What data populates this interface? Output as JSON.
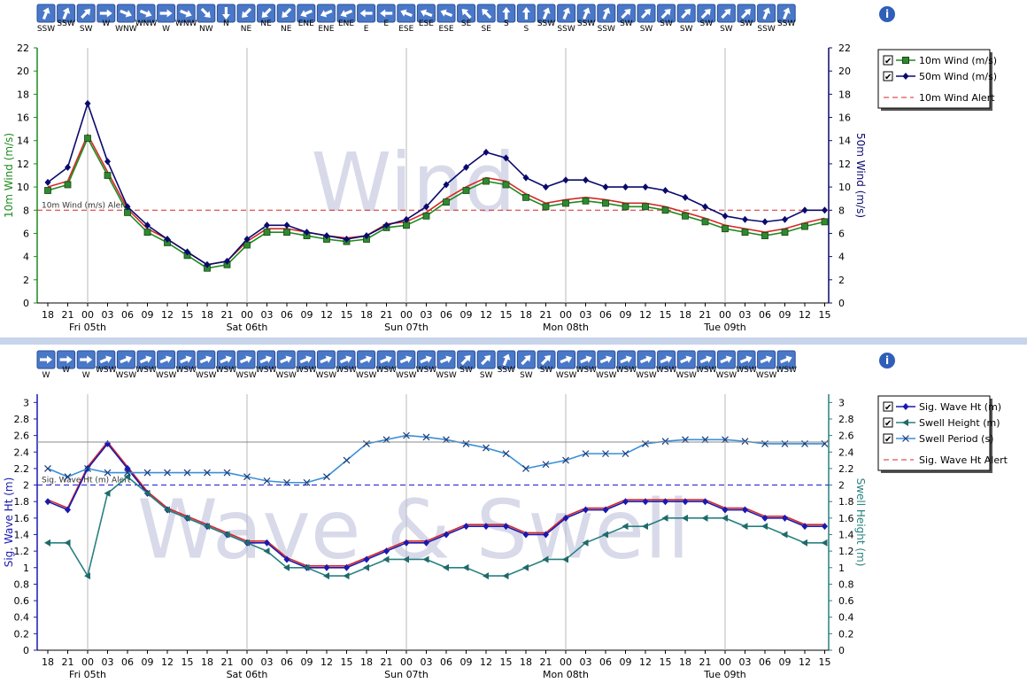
{
  "colors": {
    "green": "#1e8a1e",
    "navy": "#0a0a6e",
    "red": "#d62828",
    "alert_green": "#2e8b2e",
    "blue_line": "#1a1ab0",
    "teal": "#2a8080",
    "light_blue": "#3a8fd8",
    "alert_blue": "#1a1ad0",
    "watermark": "#b8bcd8",
    "divider": "#c8d4ea",
    "arrow_btn": "#4a78c8"
  },
  "x_axis": {
    "hour_labels": [
      "18",
      "21",
      "00",
      "03",
      "06",
      "09",
      "12",
      "15",
      "18",
      "21",
      "00",
      "03",
      "06",
      "09",
      "12",
      "15",
      "18",
      "21",
      "00",
      "03",
      "06",
      "09",
      "12",
      "15",
      "18",
      "21",
      "00",
      "03",
      "06",
      "09",
      "12",
      "15",
      "18",
      "21",
      "00",
      "03",
      "06",
      "09",
      "12",
      "15"
    ],
    "day_labels": [
      {
        "label": "Fri 05th",
        "index": 2
      },
      {
        "label": "Sat 06th",
        "index": 10
      },
      {
        "label": "Sun 07th",
        "index": 18
      },
      {
        "label": "Mon 08th",
        "index": 26
      },
      {
        "label": "Tue 09th",
        "index": 34
      }
    ]
  },
  "info_icon": "i",
  "wind_strip": {
    "directions": [
      "SSW",
      "SSW",
      "SW",
      "W",
      "WNW",
      "WNW",
      "W",
      "WNW",
      "NW",
      "N",
      "NE",
      "NE",
      "NE",
      "ENE",
      "ENE",
      "ENE",
      "E",
      "E",
      "ESE",
      "ESE",
      "ESE",
      "SE",
      "SE",
      "S",
      "S",
      "SSW",
      "SSW",
      "SSW",
      "SSW",
      "SW",
      "SW",
      "SW",
      "SW",
      "SW",
      "SW",
      "SW",
      "SSW",
      "SSW"
    ],
    "headings": [
      202,
      202,
      225,
      270,
      292,
      292,
      270,
      292,
      315,
      0,
      45,
      45,
      45,
      68,
      68,
      68,
      90,
      90,
      112,
      112,
      112,
      135,
      135,
      180,
      180,
      202,
      202,
      202,
      202,
      225,
      225,
      225,
      225,
      225,
      225,
      225,
      202,
      202
    ]
  },
  "wave_strip": {
    "directions": [
      "W",
      "W",
      "W",
      "WSW",
      "WSW",
      "WSW",
      "WSW",
      "WSW",
      "WSW",
      "WSW",
      "WSW",
      "WSW",
      "WSW",
      "WSW",
      "WSW",
      "WSW",
      "WSW",
      "WSW",
      "WSW",
      "WSW",
      "WSW",
      "SW",
      "SW",
      "SSW",
      "SW",
      "SW",
      "WSW",
      "WSW",
      "WSW",
      "WSW",
      "WSW",
      "WSW",
      "WSW",
      "WSW",
      "WSW",
      "WSW",
      "WSW",
      "WSW"
    ],
    "headings": [
      270,
      270,
      270,
      248,
      248,
      248,
      248,
      248,
      248,
      248,
      248,
      248,
      248,
      248,
      248,
      248,
      248,
      248,
      248,
      248,
      248,
      225,
      225,
      202,
      225,
      225,
      248,
      248,
      248,
      248,
      248,
      248,
      248,
      248,
      248,
      248,
      248,
      248
    ]
  },
  "chart_data": [
    {
      "type": "line",
      "title": "Wind",
      "ylabel": "10m Wind (m/s)",
      "ylabel_right": "50m Wind (m/s)",
      "ylim": [
        0,
        22
      ],
      "ylim_right": [
        0,
        22
      ],
      "yticks": [
        0,
        2,
        4,
        6,
        8,
        10,
        12,
        14,
        16,
        18,
        20,
        22
      ],
      "grid": "vertical day lines",
      "legend_position": "right",
      "legend": [
        {
          "label": "10m Wind (m/s)",
          "checked": "✔",
          "marker": "square"
        },
        {
          "label": "50m Wind (m/s)",
          "checked": "✔",
          "marker": "diamond"
        },
        {
          "label": "10m Wind Alert",
          "marker": "dash"
        }
      ],
      "alert": {
        "label": "10m Wind (m/s) Alert",
        "value": 8
      },
      "series": [
        {
          "name": "10m Wind (m/s)",
          "x": [
            0,
            1,
            2,
            3,
            4,
            5,
            6,
            7,
            8,
            9,
            10,
            11,
            12,
            13,
            14,
            15,
            16,
            17,
            18,
            19,
            20,
            21,
            22,
            23,
            24,
            25,
            26,
            27,
            28,
            29,
            30,
            31,
            32,
            33,
            34,
            35,
            36,
            37,
            38,
            39
          ],
          "values": [
            9.7,
            10.2,
            14.2,
            11.0,
            7.8,
            6.1,
            5.2,
            4.1,
            3.0,
            3.3,
            5.0,
            6.1,
            6.1,
            5.8,
            5.5,
            5.3,
            5.5,
            6.5,
            6.7,
            7.5,
            8.7,
            9.7,
            10.5,
            10.2,
            9.1,
            8.3,
            8.6,
            8.8,
            8.6,
            8.3,
            8.3,
            8.0,
            7.5,
            7.0,
            6.4,
            6.1,
            5.8,
            6.1,
            6.6,
            7.0
          ]
        },
        {
          "name": "50m Wind (m/s)",
          "x": [
            0,
            1,
            2,
            3,
            4,
            5,
            6,
            7,
            8,
            9,
            10,
            11,
            12,
            13,
            14,
            15,
            16,
            17,
            18,
            19,
            20,
            21,
            22,
            23,
            24,
            25,
            26,
            27,
            28,
            29,
            30,
            31,
            32,
            33,
            34,
            35,
            36,
            37,
            38,
            39
          ],
          "values": [
            10.4,
            11.7,
            17.2,
            12.2,
            8.3,
            6.7,
            5.5,
            4.4,
            3.3,
            3.6,
            5.5,
            6.7,
            6.7,
            6.1,
            5.8,
            5.5,
            5.8,
            6.7,
            7.2,
            8.3,
            10.2,
            11.7,
            13.0,
            12.5,
            10.8,
            10.0,
            10.6,
            10.6,
            10.0,
            10.0,
            10.0,
            9.7,
            9.1,
            8.3,
            7.5,
            7.2,
            7.0,
            7.2,
            8.0,
            8.0
          ]
        }
      ]
    },
    {
      "type": "line",
      "title": "Wave & Swell",
      "ylabel": "Sig. Wave Ht (m)",
      "ylabel_right": "Swell Height (m)",
      "ylim": [
        0,
        3.1
      ],
      "ylim_right": [
        0,
        3.1
      ],
      "yticks": [
        0,
        0.2,
        0.4,
        0.6,
        0.8,
        1,
        1.2,
        1.4,
        1.6,
        1.8,
        2,
        2.2,
        2.4,
        2.6,
        2.8,
        3
      ],
      "grid": "vertical day lines",
      "legend_position": "right",
      "legend": [
        {
          "label": "Sig. Wave Ht (m)",
          "checked": "✔",
          "marker": "diamond"
        },
        {
          "label": "Swell Height (m)",
          "checked": "✔",
          "marker": "triangle"
        },
        {
          "label": "Swell Period (s)",
          "checked": "✔",
          "marker": "x"
        },
        {
          "label": "Sig. Wave Ht Alert",
          "marker": "dash"
        }
      ],
      "alert": {
        "label": "Sig. Wave Ht (m) Alert",
        "value": 2
      },
      "series": [
        {
          "name": "Sig. Wave Ht (m)",
          "x": [
            0,
            1,
            2,
            3,
            4,
            5,
            6,
            7,
            8,
            9,
            10,
            11,
            12,
            13,
            14,
            15,
            16,
            17,
            18,
            19,
            20,
            21,
            22,
            23,
            24,
            25,
            26,
            27,
            28,
            29,
            30,
            31,
            32,
            33,
            34,
            35,
            36,
            37,
            38,
            39
          ],
          "values": [
            1.8,
            1.7,
            2.2,
            2.5,
            2.2,
            1.9,
            1.7,
            1.6,
            1.5,
            1.4,
            1.3,
            1.3,
            1.1,
            1.0,
            1.0,
            1.0,
            1.1,
            1.2,
            1.3,
            1.3,
            1.4,
            1.5,
            1.5,
            1.5,
            1.4,
            1.4,
            1.6,
            1.7,
            1.7,
            1.8,
            1.8,
            1.8,
            1.8,
            1.8,
            1.7,
            1.7,
            1.6,
            1.6,
            1.5,
            1.5
          ]
        },
        {
          "name": "Swell Height (m)",
          "x": [
            0,
            1,
            2,
            3,
            4,
            5,
            6,
            7,
            8,
            9,
            10,
            11,
            12,
            13,
            14,
            15,
            16,
            17,
            18,
            19,
            20,
            21,
            22,
            23,
            24,
            25,
            26,
            27,
            28,
            29,
            30,
            31,
            32,
            33,
            34,
            35,
            36,
            37,
            38,
            39
          ],
          "values": [
            1.3,
            1.3,
            0.9,
            1.9,
            2.1,
            1.9,
            1.7,
            1.6,
            1.5,
            1.4,
            1.3,
            1.2,
            1.0,
            1.0,
            0.9,
            0.9,
            1.0,
            1.1,
            1.1,
            1.1,
            1.0,
            1.0,
            0.9,
            0.9,
            1.0,
            1.1,
            1.1,
            1.3,
            1.4,
            1.5,
            1.5,
            1.6,
            1.6,
            1.6,
            1.6,
            1.5,
            1.5,
            1.4,
            1.3,
            1.3
          ]
        },
        {
          "name": "Swell Period (s)",
          "x": [
            0,
            1,
            2,
            3,
            4,
            5,
            6,
            7,
            8,
            9,
            10,
            11,
            12,
            13,
            14,
            15,
            16,
            17,
            18,
            19,
            20,
            21,
            22,
            23,
            24,
            25,
            26,
            27,
            28,
            29,
            30,
            31,
            32,
            33,
            34,
            35,
            36,
            37,
            38,
            39
          ],
          "values": [
            2.2,
            2.1,
            2.2,
            2.15,
            2.15,
            2.15,
            2.15,
            2.15,
            2.15,
            2.15,
            2.1,
            2.05,
            2.03,
            2.03,
            2.1,
            2.3,
            2.5,
            2.55,
            2.6,
            2.58,
            2.55,
            2.5,
            2.45,
            2.38,
            2.2,
            2.25,
            2.3,
            2.38,
            2.38,
            2.38,
            2.5,
            2.53,
            2.55,
            2.55,
            2.55,
            2.53,
            2.5,
            2.5,
            2.5,
            2.5
          ]
        }
      ]
    }
  ]
}
